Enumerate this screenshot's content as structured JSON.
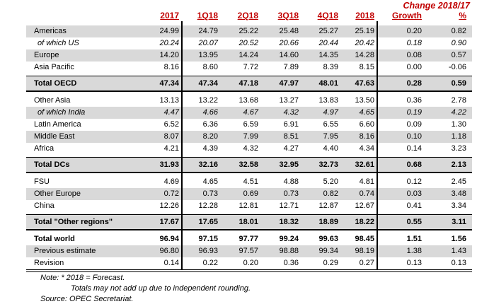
{
  "change_header": "Change 2018/17",
  "colors": {
    "header_red": "#C00000",
    "stripe_gray": "#D9D9D9",
    "text": "#000000"
  },
  "notes": [
    "Note: * 2018 = Forecast.",
    "Totals may not add up due to independent rounding.",
    "Source: OPEC Secretariat."
  ],
  "chart_data": {
    "type": "table",
    "title": "",
    "change_header": "Change 2018/17",
    "columns": [
      "2017",
      "1Q18",
      "2Q18",
      "3Q18",
      "4Q18",
      "2018",
      "Growth",
      "%"
    ],
    "rows": [
      {
        "label": "Americas",
        "values": [
          "24.99",
          "24.79",
          "25.22",
          "25.48",
          "25.27",
          "25.19",
          "0.20",
          "0.82"
        ],
        "bg": "gray"
      },
      {
        "label": "of which US",
        "values": [
          "20.24",
          "20.07",
          "20.52",
          "20.66",
          "20.44",
          "20.42",
          "0.18",
          "0.90"
        ],
        "bg": "white",
        "italic": true
      },
      {
        "label": "Europe",
        "values": [
          "14.20",
          "13.95",
          "14.24",
          "14.60",
          "14.35",
          "14.28",
          "0.08",
          "0.57"
        ],
        "bg": "gray"
      },
      {
        "label": "Asia Pacific",
        "values": [
          "8.16",
          "8.60",
          "7.72",
          "7.89",
          "8.39",
          "8.15",
          "0.00",
          "-0.06"
        ],
        "bg": "white"
      },
      {
        "label": "Total OECD",
        "values": [
          "47.34",
          "47.34",
          "47.18",
          "47.97",
          "48.01",
          "47.63",
          "0.28",
          "0.59"
        ],
        "bg": "gray",
        "bold": true,
        "borders": "total",
        "mt": 3
      },
      {
        "label": "Other Asia",
        "values": [
          "13.13",
          "13.22",
          "13.68",
          "13.27",
          "13.83",
          "13.50",
          "0.36",
          "2.78"
        ],
        "bg": "white",
        "mt": 4
      },
      {
        "label": "of which India",
        "values": [
          "4.47",
          "4.66",
          "4.67",
          "4.32",
          "4.97",
          "4.65",
          "0.19",
          "4.22"
        ],
        "bg": "gray",
        "italic": true
      },
      {
        "label": "Latin America",
        "values": [
          "6.52",
          "6.36",
          "6.59",
          "6.91",
          "6.55",
          "6.60",
          "0.09",
          "1.30"
        ],
        "bg": "white"
      },
      {
        "label": "Middle East",
        "values": [
          "8.07",
          "8.20",
          "7.99",
          "8.51",
          "7.95",
          "8.16",
          "0.10",
          "1.18"
        ],
        "bg": "gray"
      },
      {
        "label": "Africa",
        "values": [
          "4.21",
          "4.39",
          "4.32",
          "4.27",
          "4.40",
          "4.34",
          "0.14",
          "3.23"
        ],
        "bg": "white"
      },
      {
        "label": "Total DCs",
        "values": [
          "31.93",
          "32.16",
          "32.58",
          "32.95",
          "32.73",
          "32.61",
          "0.68",
          "2.13"
        ],
        "bg": "gray",
        "bold": true,
        "borders": "total",
        "mt": 3
      },
      {
        "label": "FSU",
        "values": [
          "4.69",
          "4.65",
          "4.51",
          "4.88",
          "5.20",
          "4.81",
          "0.12",
          "2.45"
        ],
        "bg": "white",
        "mt": 4
      },
      {
        "label": "Other Europe",
        "values": [
          "0.72",
          "0.73",
          "0.69",
          "0.73",
          "0.82",
          "0.74",
          "0.03",
          "3.48"
        ],
        "bg": "gray"
      },
      {
        "label": "China",
        "values": [
          "12.26",
          "12.28",
          "12.81",
          "12.71",
          "12.87",
          "12.67",
          "0.41",
          "3.34"
        ],
        "bg": "white"
      },
      {
        "label": "Total \"Other regions\"",
        "values": [
          "17.67",
          "17.65",
          "18.01",
          "18.32",
          "18.89",
          "18.22",
          "0.55",
          "3.11"
        ],
        "bg": "gray",
        "bold": true,
        "borders": "total",
        "mt": 3
      },
      {
        "label": "Total world",
        "values": [
          "96.94",
          "97.15",
          "97.77",
          "99.24",
          "99.63",
          "98.45",
          "1.51",
          "1.56"
        ],
        "bg": "white",
        "bold": true,
        "mt": 4
      },
      {
        "label": "Previous estimate",
        "values": [
          "96.80",
          "96.93",
          "97.57",
          "98.88",
          "99.34",
          "98.19",
          "1.38",
          "1.43"
        ],
        "bg": "gray"
      },
      {
        "label": "Revision",
        "values": [
          "0.14",
          "0.22",
          "0.20",
          "0.36",
          "0.29",
          "0.27",
          "0.13",
          "0.13"
        ],
        "bg": "white",
        "borders": "double"
      }
    ],
    "notes": [
      "Note: * 2018 = Forecast.",
      "Totals may not add up due to independent rounding.",
      "Source: OPEC Secretariat."
    ]
  }
}
